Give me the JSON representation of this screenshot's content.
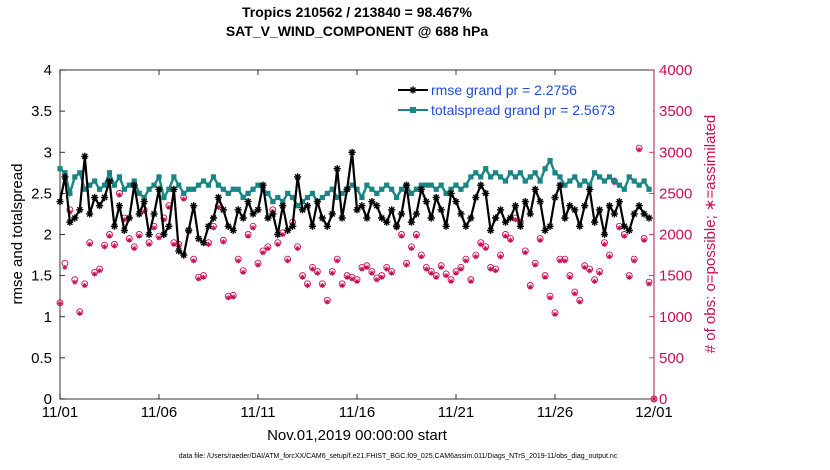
{
  "chart_data": {
    "type": "line",
    "title": "Tropics 210562 / 213840 = 98.467%",
    "subtitle": "SAT_V_WIND_COMPONENT @ 688 hPa",
    "xlabel": "Nov.01,2019 00:00:00 start",
    "ylabel": "rmse and totalspread",
    "y2label": "# of obs: o=possible; ∗=assimilated",
    "footer": "data file: /Users/raeder/DAI/ATM_forcXX/CAM6_setup/f.e21.FHIST_BGC.f09_025.CAM6assim.011/Diags_NTrS_2019-11/obs_diag_output.nc",
    "xlim": [
      0,
      30
    ],
    "ylim": [
      0,
      4
    ],
    "y2lim": [
      0,
      4000
    ],
    "xticks": [
      0,
      5,
      10,
      15,
      20,
      25,
      30
    ],
    "xtick_labels": [
      "11/01",
      "11/06",
      "11/11",
      "11/16",
      "11/21",
      "11/26",
      "12/01"
    ],
    "yticks": [
      0,
      0.5,
      1,
      1.5,
      2,
      2.5,
      3,
      3.5,
      4
    ],
    "ytick_labels": [
      "0",
      "0.5",
      "1",
      "1.5",
      "2",
      "2.5",
      "3",
      "3.5",
      "4"
    ],
    "y2ticks": [
      0,
      500,
      1000,
      1500,
      2000,
      2500,
      3000,
      3500,
      4000
    ],
    "y2tick_labels": [
      "0",
      "500",
      "1000",
      "1500",
      "2000",
      "2500",
      "3000",
      "3500",
      "4000"
    ],
    "colors": {
      "rmse": "#000000",
      "spread": "#1a8585",
      "obs": "#cc0d55",
      "legend_text": "#1e4bd9"
    },
    "legend": {
      "placement": "top-right",
      "rmse_label": "rmse grand pr = 2.2756",
      "spread_label": "totalspread grand pr = 2.5673"
    },
    "series": [
      {
        "name": "rmse",
        "x": [
          0.0,
          0.25,
          0.5,
          0.75,
          1.0,
          1.25,
          1.5,
          1.75,
          2.0,
          2.25,
          2.5,
          2.75,
          3.0,
          3.25,
          3.5,
          3.75,
          4.0,
          4.25,
          4.5,
          4.75,
          5.0,
          5.25,
          5.5,
          5.75,
          6.0,
          6.25,
          6.5,
          6.75,
          7.0,
          7.25,
          7.5,
          7.75,
          8.0,
          8.25,
          8.5,
          8.75,
          9.0,
          9.25,
          9.5,
          9.75,
          10.0,
          10.25,
          10.5,
          10.75,
          11.0,
          11.25,
          11.5,
          11.75,
          12.0,
          12.25,
          12.5,
          12.75,
          13.0,
          13.25,
          13.5,
          13.75,
          14.0,
          14.25,
          14.5,
          14.75,
          15.0,
          15.25,
          15.5,
          15.75,
          16.0,
          16.25,
          16.5,
          16.75,
          17.0,
          17.25,
          17.5,
          17.75,
          18.0,
          18.25,
          18.5,
          18.75,
          19.0,
          19.25,
          19.5,
          19.75,
          20.0,
          20.25,
          20.5,
          20.75,
          21.0,
          21.25,
          21.5,
          21.75,
          22.0,
          22.25,
          22.5,
          22.75,
          23.0,
          23.25,
          23.5,
          23.75,
          24.0,
          24.25,
          24.5,
          24.75,
          25.0,
          25.25,
          25.5,
          25.75,
          26.0,
          26.25,
          26.5,
          26.75,
          27.0,
          27.25,
          27.5,
          27.75,
          28.0,
          28.25,
          28.5,
          28.75,
          29.0,
          29.25,
          29.5,
          29.75
        ],
        "values": [
          2.4,
          2.7,
          2.15,
          2.2,
          2.3,
          2.95,
          2.25,
          2.45,
          2.35,
          2.45,
          2.65,
          2.1,
          2.35,
          2.05,
          2.2,
          2.6,
          2.25,
          2.4,
          2.0,
          2.25,
          2.55,
          2.0,
          2.1,
          2.55,
          1.8,
          1.75,
          2.05,
          2.35,
          1.95,
          1.9,
          2.1,
          2.2,
          2.45,
          2.3,
          2.1,
          2.05,
          2.3,
          2.2,
          2.4,
          2.25,
          2.3,
          2.6,
          2.2,
          2.25,
          2.0,
          2.35,
          2.05,
          2.1,
          2.7,
          2.3,
          2.35,
          2.1,
          2.4,
          2.2,
          2.1,
          2.25,
          2.8,
          2.2,
          2.55,
          3.0,
          2.3,
          2.35,
          2.2,
          2.4,
          2.35,
          2.2,
          2.15,
          2.3,
          2.1,
          2.25,
          2.6,
          2.15,
          2.25,
          2.55,
          2.4,
          2.2,
          2.45,
          2.3,
          2.1,
          2.5,
          2.4,
          2.25,
          2.1,
          2.2,
          2.45,
          2.6,
          2.5,
          2.05,
          2.2,
          2.3,
          2.15,
          2.2,
          2.35,
          2.1,
          2.4,
          2.25,
          2.55,
          2.4,
          2.05,
          2.1,
          2.45,
          2.6,
          2.2,
          2.35,
          2.3,
          2.1,
          2.35,
          2.55,
          2.15,
          2.3,
          2.0,
          2.35,
          2.25,
          2.4,
          2.1,
          2.05,
          2.25,
          2.35,
          2.25,
          2.2
        ]
      },
      {
        "name": "totalspread",
        "x": [
          0.0,
          0.25,
          0.5,
          0.75,
          1.0,
          1.25,
          1.5,
          1.75,
          2.0,
          2.25,
          2.5,
          2.75,
          3.0,
          3.25,
          3.5,
          3.75,
          4.0,
          4.25,
          4.5,
          4.75,
          5.0,
          5.25,
          5.5,
          5.75,
          6.0,
          6.25,
          6.5,
          6.75,
          7.0,
          7.25,
          7.5,
          7.75,
          8.0,
          8.25,
          8.5,
          8.75,
          9.0,
          9.25,
          9.5,
          9.75,
          10.0,
          10.25,
          10.5,
          10.75,
          11.0,
          11.25,
          11.5,
          11.75,
          12.0,
          12.25,
          12.5,
          12.75,
          13.0,
          13.25,
          13.5,
          13.75,
          14.0,
          14.25,
          14.5,
          14.75,
          15.0,
          15.25,
          15.5,
          15.75,
          16.0,
          16.25,
          16.5,
          16.75,
          17.0,
          17.25,
          17.5,
          17.75,
          18.0,
          18.25,
          18.5,
          18.75,
          19.0,
          19.25,
          19.5,
          19.75,
          20.0,
          20.25,
          20.5,
          20.75,
          21.0,
          21.25,
          21.5,
          21.75,
          22.0,
          22.25,
          22.5,
          22.75,
          23.0,
          23.25,
          23.5,
          23.75,
          24.0,
          24.25,
          24.5,
          24.75,
          25.0,
          25.25,
          25.5,
          25.75,
          26.0,
          26.25,
          26.5,
          26.75,
          27.0,
          27.25,
          27.5,
          27.75,
          28.0,
          28.25,
          28.5,
          28.75,
          29.0,
          29.25,
          29.5,
          29.75
        ],
        "values": [
          2.8,
          2.75,
          2.5,
          2.7,
          2.75,
          2.55,
          2.6,
          2.65,
          2.55,
          2.6,
          2.75,
          2.6,
          2.7,
          2.55,
          2.6,
          2.65,
          2.5,
          2.45,
          2.55,
          2.6,
          2.7,
          2.45,
          2.55,
          2.7,
          2.6,
          2.5,
          2.55,
          2.55,
          2.6,
          2.65,
          2.6,
          2.7,
          2.6,
          2.55,
          2.5,
          2.55,
          2.55,
          2.45,
          2.5,
          2.55,
          2.6,
          2.55,
          2.5,
          2.4,
          2.45,
          2.4,
          2.5,
          2.45,
          2.35,
          2.4,
          2.45,
          2.5,
          2.4,
          2.45,
          2.5,
          2.55,
          2.45,
          2.5,
          2.55,
          2.6,
          2.55,
          2.45,
          2.6,
          2.55,
          2.5,
          2.55,
          2.6,
          2.55,
          2.45,
          2.55,
          2.6,
          2.5,
          2.55,
          2.6,
          2.6,
          2.6,
          2.55,
          2.6,
          2.5,
          2.55,
          2.6,
          2.55,
          2.6,
          2.7,
          2.75,
          2.7,
          2.8,
          2.7,
          2.75,
          2.7,
          2.65,
          2.75,
          2.7,
          2.75,
          2.65,
          2.7,
          2.75,
          2.65,
          2.8,
          2.9,
          2.75,
          2.7,
          2.6,
          2.65,
          2.7,
          2.6,
          2.65,
          2.6,
          2.75,
          2.7,
          2.65,
          2.7,
          2.65,
          2.6,
          2.55,
          2.7,
          2.65,
          2.6,
          2.65,
          2.55
        ]
      },
      {
        "name": "obs_possible",
        "x": [
          0.0,
          0.25,
          0.5,
          0.75,
          1.0,
          1.25,
          1.5,
          1.75,
          2.0,
          2.25,
          2.5,
          2.75,
          3.0,
          3.25,
          3.5,
          3.75,
          4.0,
          4.25,
          4.5,
          4.75,
          5.0,
          5.25,
          5.5,
          5.75,
          6.0,
          6.25,
          6.5,
          6.75,
          7.0,
          7.25,
          7.5,
          7.75,
          8.0,
          8.25,
          8.5,
          8.75,
          9.0,
          9.25,
          9.5,
          9.75,
          10.0,
          10.25,
          10.5,
          10.75,
          11.0,
          11.25,
          11.5,
          11.75,
          12.0,
          12.25,
          12.5,
          12.75,
          13.0,
          13.25,
          13.5,
          13.75,
          14.0,
          14.25,
          14.5,
          14.75,
          15.0,
          15.25,
          15.5,
          15.75,
          16.0,
          16.25,
          16.5,
          16.75,
          17.0,
          17.25,
          17.5,
          17.75,
          18.0,
          18.25,
          18.5,
          18.75,
          19.0,
          19.25,
          19.5,
          19.75,
          20.0,
          20.25,
          20.5,
          20.75,
          21.0,
          21.25,
          21.5,
          21.75,
          22.0,
          22.25,
          22.5,
          22.75,
          23.0,
          23.25,
          23.5,
          23.75,
          24.0,
          24.25,
          24.5,
          24.75,
          25.0,
          25.25,
          25.5,
          25.75,
          26.0,
          26.25,
          26.5,
          26.75,
          27.0,
          27.25,
          27.5,
          27.75,
          28.0,
          28.25,
          28.5,
          28.75,
          29.0,
          29.25,
          29.5,
          29.75,
          30.0
        ],
        "values": [
          1170,
          1650,
          2300,
          1450,
          1060,
          1400,
          1900,
          1540,
          1580,
          1870,
          2000,
          1880,
          2500,
          2200,
          1950,
          1850,
          2000,
          2300,
          1900,
          2100,
          1980,
          2200,
          2350,
          1900,
          1880,
          2450,
          2050,
          1700,
          1480,
          1500,
          1900,
          2100,
          2350,
          1930,
          1250,
          1260,
          1700,
          1560,
          2000,
          2100,
          1650,
          1800,
          1850,
          2300,
          1900,
          2020,
          1700,
          2150,
          1850,
          1500,
          1400,
          1600,
          1550,
          1400,
          1200,
          1550,
          1700,
          1400,
          1500,
          1480,
          1450,
          1600,
          1620,
          1550,
          1470,
          1500,
          1600,
          1550,
          2100,
          2000,
          1650,
          1850,
          2000,
          1750,
          1600,
          1550,
          1500,
          1620,
          1520,
          1450,
          1550,
          1600,
          1700,
          1450,
          1750,
          1900,
          1850,
          1600,
          1580,
          1750,
          2000,
          1950,
          2200,
          2150,
          1800,
          1380,
          1650,
          1950,
          1500,
          1250,
          1050,
          1700,
          1700,
          1500,
          1300,
          1200,
          1620,
          1580,
          1450,
          1550,
          1900,
          1750,
          2650,
          2100,
          2000,
          1500,
          1700,
          3050,
          1950,
          1420,
          0
        ]
      },
      {
        "name": "obs_assimilated",
        "x": [
          0.0,
          0.25,
          0.5,
          0.75,
          1.0,
          1.25,
          1.5,
          1.75,
          2.0,
          2.25,
          2.5,
          2.75,
          3.0,
          3.25,
          3.5,
          3.75,
          4.0,
          4.25,
          4.5,
          4.75,
          5.0,
          5.25,
          5.5,
          5.75,
          6.0,
          6.25,
          6.5,
          6.75,
          7.0,
          7.25,
          7.5,
          7.75,
          8.0,
          8.25,
          8.5,
          8.75,
          9.0,
          9.25,
          9.5,
          9.75,
          10.0,
          10.25,
          10.5,
          10.75,
          11.0,
          11.25,
          11.5,
          11.75,
          12.0,
          12.25,
          12.5,
          12.75,
          13.0,
          13.25,
          13.5,
          13.75,
          14.0,
          14.25,
          14.5,
          14.75,
          15.0,
          15.25,
          15.5,
          15.75,
          16.0,
          16.25,
          16.5,
          16.75,
          17.0,
          17.25,
          17.5,
          17.75,
          18.0,
          18.25,
          18.5,
          18.75,
          19.0,
          19.25,
          19.5,
          19.75,
          20.0,
          20.25,
          20.5,
          20.75,
          21.0,
          21.25,
          21.5,
          21.75,
          22.0,
          22.25,
          22.5,
          22.75,
          23.0,
          23.25,
          23.5,
          23.75,
          24.0,
          24.25,
          24.5,
          24.75,
          25.0,
          25.25,
          25.5,
          25.75,
          26.0,
          26.25,
          26.5,
          26.75,
          27.0,
          27.25,
          27.5,
          27.75,
          28.0,
          28.25,
          28.5,
          28.75,
          29.0,
          29.25,
          29.5,
          29.75,
          30.0
        ],
        "values": [
          1160,
          1600,
          2270,
          1420,
          1040,
          1380,
          1880,
          1520,
          1560,
          1850,
          1980,
          1860,
          2480,
          2180,
          1930,
          1830,
          1980,
          2280,
          1880,
          2080,
          1960,
          2180,
          2330,
          1880,
          1860,
          2430,
          2030,
          1680,
          1460,
          1480,
          1880,
          2080,
          2330,
          1910,
          1230,
          1240,
          1680,
          1540,
          1980,
          2080,
          1630,
          1780,
          1830,
          2280,
          1880,
          2000,
          1680,
          2130,
          1830,
          1480,
          1380,
          1580,
          1530,
          1380,
          1180,
          1530,
          1680,
          1380,
          1480,
          1460,
          1430,
          1580,
          1600,
          1530,
          1450,
          1480,
          1580,
          1530,
          2080,
          1980,
          1630,
          1830,
          1980,
          1730,
          1580,
          1530,
          1480,
          1600,
          1500,
          1430,
          1530,
          1580,
          1680,
          1430,
          1730,
          1880,
          1830,
          1580,
          1560,
          1730,
          1980,
          1930,
          2180,
          2130,
          1780,
          1360,
          1630,
          1930,
          1480,
          1230,
          1030,
          1680,
          1680,
          1480,
          1280,
          1180,
          1600,
          1560,
          1430,
          1530,
          1880,
          1730,
          2630,
          2080,
          1980,
          1480,
          1680,
          3030,
          1930,
          1400,
          0
        ]
      }
    ]
  }
}
